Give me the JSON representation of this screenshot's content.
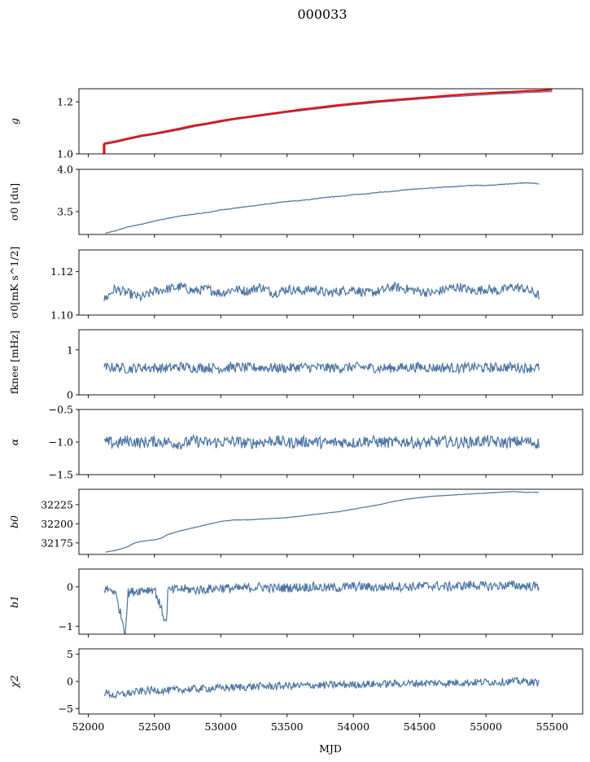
{
  "figure": {
    "title": "000033",
    "xlabel": "MJD"
  },
  "chart_data": {
    "type": "line",
    "x_ticks": [
      "52000",
      "52500",
      "53000",
      "53500",
      "54000",
      "54500",
      "55000",
      "55500"
    ],
    "xlim": [
      51930,
      55730
    ],
    "line_color": "#4a74a4",
    "highlight_color": "#ff0000",
    "panels": [
      {
        "id": "g",
        "ylabel": "g",
        "ylim": [
          1.0,
          1.25
        ],
        "yticks": [
          "1.0",
          "1.2"
        ],
        "ytick_values": [
          1.0,
          1.2
        ],
        "series": [
          {
            "color": "#4a74a4",
            "x": [
              52120,
              52200,
              52300,
              52400,
              52500,
              52600,
              52700,
              52800,
              52900,
              53000,
              53100,
              53200,
              53300,
              53400,
              53500,
              53600,
              53700,
              53800,
              53900,
              54000,
              54100,
              54200,
              54300,
              54400,
              54500,
              54600,
              54700,
              54800,
              54900,
              55000,
              55100,
              55200,
              55300,
              55400,
              55500
            ],
            "values": [
              1.036,
              1.043,
              1.055,
              1.066,
              1.074,
              1.083,
              1.093,
              1.104,
              1.113,
              1.122,
              1.131,
              1.138,
              1.145,
              1.152,
              1.159,
              1.165,
              1.171,
              1.177,
              1.183,
              1.188,
              1.193,
              1.198,
              1.202,
              1.206,
              1.21,
              1.214,
              1.218,
              1.221,
              1.224,
              1.227,
              1.23,
              1.232,
              1.235,
              1.237,
              1.239
            ]
          },
          {
            "color": "#ff0000",
            "x": [
              52120,
              52200,
              52300,
              52400,
              52500,
              52600,
              52700,
              52800,
              52900,
              53000,
              53100,
              53200,
              53300,
              53400,
              53500,
              53600,
              53700,
              53800,
              53900,
              54000,
              54100,
              54200,
              54300,
              54400,
              54500,
              54600,
              54700,
              54800,
              54900,
              55000,
              55100,
              55200,
              55300,
              55400,
              55500
            ],
            "values": [
              1.04,
              1.047,
              1.059,
              1.07,
              1.078,
              1.088,
              1.098,
              1.109,
              1.117,
              1.127,
              1.135,
              1.142,
              1.149,
              1.156,
              1.163,
              1.17,
              1.176,
              1.182,
              1.188,
              1.193,
              1.198,
              1.203,
              1.207,
              1.211,
              1.215,
              1.219,
              1.223,
              1.227,
              1.23,
              1.233,
              1.236,
              1.238,
              1.241,
              1.243,
              1.246
            ]
          }
        ]
      },
      {
        "id": "sigma0",
        "ylabel": "σ0 [du]",
        "ylim": [
          3.23,
          4.0
        ],
        "yticks": [
          "3.5",
          "4.0"
        ],
        "ytick_values": [
          3.5,
          4.0
        ],
        "series": [
          {
            "color": "#4a74a4",
            "x": [
              52130,
              52200,
              52300,
              52400,
              52500,
              52600,
              52700,
              52800,
              52900,
              53000,
              53100,
              53200,
              53300,
              53400,
              53500,
              53600,
              53700,
              53800,
              53900,
              54000,
              54100,
              54200,
              54300,
              54400,
              54500,
              54600,
              54700,
              54800,
              54900,
              55000,
              55100,
              55200,
              55300,
              55400
            ],
            "values": [
              3.245,
              3.27,
              3.32,
              3.35,
              3.39,
              3.42,
              3.45,
              3.47,
              3.49,
              3.52,
              3.54,
              3.56,
              3.58,
              3.6,
              3.62,
              3.63,
              3.65,
              3.67,
              3.68,
              3.7,
              3.71,
              3.73,
              3.74,
              3.76,
              3.77,
              3.78,
              3.79,
              3.8,
              3.81,
              3.81,
              3.82,
              3.83,
              3.84,
              3.83
            ]
          }
        ]
      },
      {
        "id": "sigma0_mk",
        "ylabel": "σ0[mK s^1/2]",
        "ylim": [
          1.1,
          1.13
        ],
        "yticks": [
          "1.10",
          "1.12"
        ],
        "ytick_values": [
          1.1,
          1.12
        ],
        "series": [
          {
            "color": "#4a74a4",
            "x": [
              52120,
              52200,
              52300,
              52400,
              52500,
              52600,
              52700,
              52800,
              52900,
              53000,
              53100,
              53200,
              53300,
              53400,
              53500,
              53600,
              53700,
              53800,
              53900,
              54000,
              54100,
              54200,
              54300,
              54400,
              54500,
              54600,
              54700,
              54800,
              54900,
              55000,
              55100,
              55200,
              55300,
              55400
            ],
            "values": [
              1.107,
              1.112,
              1.11,
              1.108,
              1.111,
              1.112,
              1.113,
              1.111,
              1.112,
              1.11,
              1.112,
              1.111,
              1.113,
              1.11,
              1.112,
              1.111,
              1.112,
              1.11,
              1.111,
              1.112,
              1.11,
              1.111,
              1.113,
              1.112,
              1.111,
              1.11,
              1.112,
              1.113,
              1.111,
              1.112,
              1.111,
              1.113,
              1.112,
              1.109
            ]
          }
        ]
      },
      {
        "id": "fknee",
        "ylabel": "fknee [mHz]",
        "ylim": [
          0,
          1.45
        ],
        "yticks": [
          "0",
          "1"
        ],
        "ytick_values": [
          0,
          1
        ],
        "series": [
          {
            "color": "#4a74a4",
            "x": [
              52120,
              52200,
              52300,
              52400,
              52500,
              52600,
              52700,
              52800,
              52900,
              53000,
              53100,
              53200,
              53300,
              53400,
              53500,
              53600,
              53700,
              53800,
              53900,
              54000,
              54100,
              54200,
              54300,
              54400,
              54500,
              54600,
              54700,
              54800,
              54900,
              55000,
              55100,
              55200,
              55300,
              55400
            ],
            "values": [
              0.6,
              0.62,
              0.58,
              0.61,
              0.6,
              0.59,
              0.63,
              0.6,
              0.61,
              0.59,
              0.62,
              0.6,
              0.61,
              0.6,
              0.59,
              0.62,
              0.61,
              0.6,
              0.6,
              0.62,
              0.61,
              0.59,
              0.6,
              0.61,
              0.62,
              0.6,
              0.61,
              0.59,
              0.62,
              0.6,
              0.61,
              0.62,
              0.6,
              0.61
            ]
          }
        ]
      },
      {
        "id": "alpha",
        "ylabel": "α",
        "ylim": [
          -1.5,
          -0.5
        ],
        "yticks": [
          "−1.5",
          "−1.0",
          "−0.5"
        ],
        "ytick_values": [
          -1.5,
          -1.0,
          -0.5
        ],
        "series": [
          {
            "color": "#4a74a4",
            "x": [
              52120,
              52200,
              52300,
              52400,
              52500,
              52600,
              52700,
              52800,
              52900,
              53000,
              53100,
              53200,
              53300,
              53400,
              53500,
              53600,
              53700,
              53800,
              53900,
              54000,
              54100,
              54200,
              54300,
              54400,
              54500,
              54600,
              54700,
              54800,
              54900,
              55000,
              55100,
              55200,
              55300,
              55400
            ],
            "values": [
              -1.0,
              -1.02,
              -0.98,
              -1.01,
              -0.99,
              -1.0,
              -1.03,
              -0.98,
              -1.01,
              -1.0,
              -0.99,
              -1.02,
              -1.0,
              -0.98,
              -1.01,
              -1.0,
              -0.99,
              -1.02,
              -1.0,
              -1.01,
              -0.98,
              -1.0,
              -1.01,
              -0.99,
              -1.02,
              -1.0,
              -0.99,
              -1.01,
              -1.0,
              -0.98,
              -1.01,
              -1.0,
              -0.99,
              -1.02
            ]
          }
        ]
      },
      {
        "id": "b0",
        "ylabel": "b0",
        "ylim": [
          32160,
          32245
        ],
        "yticks": [
          "32175",
          "32200",
          "32225"
        ],
        "ytick_values": [
          32175,
          32200,
          32225
        ],
        "series": [
          {
            "color": "#4a74a4",
            "x": [
              52130,
              52200,
              52300,
              52350,
              52400,
              52500,
              52550,
              52600,
              52700,
              52800,
              52900,
              53000,
              53100,
              53200,
              53300,
              53400,
              53500,
              53600,
              53700,
              53800,
              53900,
              54000,
              54100,
              54200,
              54300,
              54400,
              54500,
              54600,
              54700,
              54800,
              54900,
              55000,
              55100,
              55200,
              55300,
              55400
            ],
            "values": [
              32163,
              32165,
              32170,
              32175,
              32177,
              32179,
              32181,
              32186,
              32191,
              32195,
              32199,
              32203,
              32205,
              32205,
              32206,
              32207,
              32208,
              32210,
              32212,
              32214,
              32216,
              32219,
              32222,
              32225,
              32229,
              32232,
              32234,
              32236,
              32237,
              32238,
              32239,
              32240,
              32241,
              32242,
              32241,
              32241
            ]
          }
        ]
      },
      {
        "id": "b1",
        "ylabel": "b1",
        "ylim": [
          -1.2,
          0.45
        ],
        "yticks": [
          "−1",
          "0"
        ],
        "ytick_values": [
          -1,
          0
        ],
        "series": [
          {
            "color": "#4a74a4",
            "x": [
              52120,
              52200,
              52280,
              52300,
              52400,
              52500,
              52590,
              52600,
              52700,
              52800,
              52900,
              53000,
              53100,
              53200,
              53300,
              53400,
              53500,
              53600,
              53700,
              53800,
              53900,
              54000,
              54100,
              54200,
              54300,
              54400,
              54500,
              54600,
              54700,
              54800,
              54900,
              55000,
              55100,
              55200,
              55300,
              55400
            ],
            "values": [
              -0.05,
              -0.1,
              -1.15,
              -0.15,
              -0.08,
              -0.06,
              -0.95,
              -0.1,
              -0.05,
              -0.08,
              -0.06,
              -0.02,
              -0.05,
              -0.03,
              0.0,
              -0.04,
              -0.02,
              -0.01,
              0.0,
              -0.03,
              -0.02,
              0.01,
              0.0,
              -0.02,
              0.02,
              0.0,
              0.01,
              0.03,
              0.0,
              0.02,
              0.05,
              0.01,
              0.03,
              0.04,
              0.02,
              0.0
            ]
          }
        ]
      },
      {
        "id": "chi2",
        "ylabel": "χ2",
        "ylim": [
          -6,
          6
        ],
        "yticks": [
          "−5",
          "0",
          "5"
        ],
        "ytick_values": [
          -5,
          0,
          5
        ],
        "series": [
          {
            "color": "#4a74a4",
            "x": [
              52120,
              52200,
              52300,
              52400,
              52500,
              52600,
              52700,
              52800,
              52900,
              53000,
              53100,
              53200,
              53300,
              53400,
              53500,
              53600,
              53700,
              53800,
              53900,
              54000,
              54100,
              54200,
              54300,
              54400,
              54500,
              54600,
              54700,
              54800,
              54900,
              55000,
              55100,
              55200,
              55300,
              55400
            ],
            "values": [
              -2.0,
              -2.6,
              -2.2,
              -1.8,
              -1.6,
              -1.7,
              -1.5,
              -1.4,
              -1.3,
              -1.2,
              -1.1,
              -1.0,
              -0.9,
              -0.9,
              -0.8,
              -0.8,
              -0.7,
              -0.7,
              -0.6,
              -0.6,
              -0.5,
              -0.5,
              -0.4,
              -0.4,
              -0.3,
              -0.3,
              -0.3,
              -0.2,
              -0.2,
              -0.1,
              -0.1,
              0.0,
              0.0,
              -0.3
            ]
          }
        ]
      }
    ]
  }
}
